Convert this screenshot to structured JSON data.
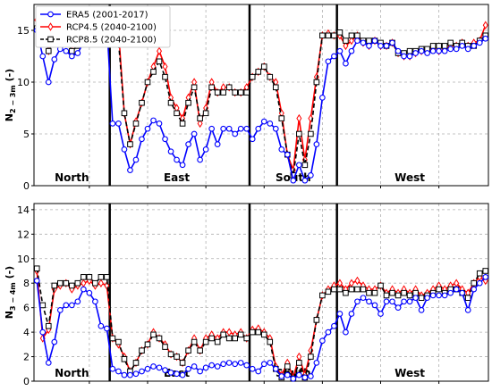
{
  "chart_data": [
    {
      "type": "line",
      "ylabel": "N2 − 3m (-)",
      "ylabel_main": "N",
      "ylabel_sub": "2 − 3m",
      "ylabel_unit": " (-)",
      "ylim": [
        0,
        17.5
      ],
      "yticks": [
        0,
        5,
        10,
        15
      ],
      "grid": true,
      "legend": "top-left",
      "x": [
        1,
        2,
        3,
        4,
        5,
        6,
        7,
        8,
        9,
        10,
        11,
        12,
        13,
        14,
        15,
        16,
        17,
        18,
        19,
        20,
        21,
        22,
        23,
        24,
        25,
        26,
        27,
        28,
        29,
        30,
        31,
        32,
        33,
        34,
        35,
        36,
        37,
        38,
        39,
        40,
        41,
        42,
        43,
        44,
        45,
        46,
        47,
        48,
        49,
        50,
        51,
        52,
        53,
        54,
        55,
        56,
        57,
        58,
        59,
        60,
        61,
        62,
        63,
        64,
        65,
        66,
        67,
        68,
        69,
        70,
        71,
        72,
        73,
        74,
        75,
        76,
        77,
        78
      ],
      "dividers": [
        13.5,
        37.5,
        52.5
      ],
      "regions": [
        {
          "label": "North",
          "x": 7
        },
        {
          "label": "East",
          "x": 25
        },
        {
          "label": "South",
          "x": 45
        },
        {
          "label": "West",
          "x": 65
        }
      ],
      "series": [
        {
          "name": "ERA5 (2001-2017)",
          "color": "#0000ff",
          "marker": "circle",
          "values": [
            15,
            12.5,
            10,
            12.2,
            13.2,
            13,
            12.5,
            12.8,
            13.8,
            13.6,
            13.8,
            14.5,
            15.5,
            6,
            6,
            3.5,
            1.5,
            2.5,
            4.5,
            5.5,
            6.3,
            6,
            4.5,
            3.3,
            2.5,
            2,
            4,
            5,
            2.5,
            3.5,
            5.5,
            4,
            5.5,
            5.5,
            5,
            5.5,
            5.5,
            4.5,
            5.5,
            6.2,
            6,
            5.5,
            3.5,
            3,
            0.5,
            2,
            0.5,
            1,
            4,
            8.5,
            12,
            12.5,
            13,
            11.8,
            13,
            14,
            13.8,
            13.5,
            14,
            13.5,
            13.5,
            13.8,
            13,
            12.5,
            12.5,
            12.8,
            13,
            12.8,
            13,
            13,
            13,
            13.2,
            13.2,
            13.5,
            13.2,
            13.5,
            13.8,
            14.2
          ]
        },
        {
          "name": "RCP4.5 (2040-2100)",
          "color": "#ff0000",
          "marker": "diamond",
          "values": [
            16,
            15.5,
            13,
            14.5,
            15.5,
            14.5,
            13.5,
            14,
            14.5,
            14.2,
            14,
            16.5,
            16.8,
            15.5,
            15,
            7,
            4,
            6.2,
            8,
            10,
            11.5,
            13,
            11.5,
            8.5,
            7.5,
            6.5,
            8.5,
            10,
            6,
            7.5,
            10,
            9,
            9.5,
            9.5,
            9,
            9,
            9.5,
            10.5,
            11,
            11.5,
            10.5,
            10,
            7,
            3,
            1.5,
            6.5,
            2.5,
            6.5,
            10.5,
            14.5,
            14.7,
            14.5,
            14.5,
            13.5,
            14,
            14.5,
            13.8,
            13.5,
            14,
            13.5,
            13.5,
            13.8,
            12.8,
            12.5,
            12.5,
            12.8,
            13,
            13,
            13.2,
            13,
            13.2,
            13.5,
            13.5,
            13.8,
            13.5,
            13.8,
            14,
            15.5
          ]
        },
        {
          "name": "RCP8.5 (2040-2100)",
          "color": "#000000",
          "marker": "square",
          "values": [
            15.2,
            16,
            13,
            14,
            14.5,
            14.5,
            13,
            13.5,
            14.5,
            14,
            14,
            16.2,
            16.2,
            14,
            14,
            7,
            4,
            6,
            8,
            10,
            11,
            12,
            10.5,
            8,
            7,
            6,
            8,
            9.5,
            6.5,
            7,
            9.5,
            9,
            9,
            9.5,
            9,
            9,
            9,
            10.5,
            11,
            11.5,
            10.5,
            9.5,
            6.5,
            3,
            1,
            5,
            2,
            5,
            10,
            14.5,
            14.5,
            14.5,
            14.8,
            14,
            14.5,
            14.5,
            14,
            14,
            14,
            13.8,
            13.5,
            13.8,
            12.8,
            12.8,
            13,
            13,
            13.2,
            13.2,
            13.5,
            13.5,
            13.5,
            13.8,
            13.5,
            13.8,
            13.5,
            13.5,
            14,
            14.5
          ]
        }
      ]
    },
    {
      "type": "line",
      "ylabel": "N3 − 4m (-)",
      "ylabel_main": "N",
      "ylabel_sub": "3 − 4m",
      "ylabel_unit": " (-)",
      "ylim": [
        0,
        14.5
      ],
      "yticks": [
        0,
        2,
        4,
        6,
        8,
        10,
        12,
        14
      ],
      "grid": true,
      "legend": "none",
      "x": [
        1,
        2,
        3,
        4,
        5,
        6,
        7,
        8,
        9,
        10,
        11,
        12,
        13,
        14,
        15,
        16,
        17,
        18,
        19,
        20,
        21,
        22,
        23,
        24,
        25,
        26,
        27,
        28,
        29,
        30,
        31,
        32,
        33,
        34,
        35,
        36,
        37,
        38,
        39,
        40,
        41,
        42,
        43,
        44,
        45,
        46,
        47,
        48,
        49,
        50,
        51,
        52,
        53,
        54,
        55,
        56,
        57,
        58,
        59,
        60,
        61,
        62,
        63,
        64,
        65,
        66,
        67,
        68,
        69,
        70,
        71,
        72,
        73,
        74,
        75,
        76,
        77,
        78
      ],
      "dividers": [
        13.5,
        37.5,
        52.5
      ],
      "regions": [
        {
          "label": "North",
          "x": 7
        },
        {
          "label": "East",
          "x": 25
        },
        {
          "label": "South",
          "x": 45
        },
        {
          "label": "West",
          "x": 65
        }
      ],
      "series": [
        {
          "name": "ERA5 (2001-2017)",
          "color": "#0000ff",
          "marker": "circle",
          "values": [
            8.2,
            4,
            1.5,
            3.2,
            5.8,
            6.2,
            6.2,
            6.5,
            7.5,
            7.2,
            6.5,
            4.5,
            4.3,
            1,
            0.8,
            0.5,
            0.5,
            0.6,
            0.8,
            1,
            1.2,
            1.1,
            0.9,
            0.7,
            0.6,
            0.5,
            1,
            1.2,
            0.8,
            1.1,
            1.3,
            1.2,
            1.4,
            1.5,
            1.4,
            1.5,
            1.3,
            1,
            0.8,
            1.4,
            1.5,
            1,
            0.4,
            0.5,
            0.2,
            0.5,
            0.3,
            0.4,
            1.5,
            3.3,
            4,
            4.5,
            5.5,
            4,
            5.5,
            6.5,
            6.8,
            6.5,
            6.2,
            5.5,
            6.5,
            6.5,
            6,
            6.5,
            6.5,
            6.8,
            5.8,
            6.8,
            7,
            7,
            7,
            7.2,
            7.5,
            7.2,
            5.8,
            7.5,
            8,
            8.5
          ]
        },
        {
          "name": "RCP4.5 (2040-2100)",
          "color": "#ff0000",
          "marker": "diamond",
          "values": [
            9,
            3.5,
            4.2,
            7.5,
            7.8,
            8,
            7.5,
            7.8,
            8,
            8.2,
            7.8,
            8,
            7.8,
            3.5,
            3,
            2,
            0.8,
            1.5,
            2.5,
            3,
            4,
            3.5,
            3,
            2.2,
            2,
            1.5,
            2.5,
            3.5,
            2.5,
            3.5,
            3.8,
            3.5,
            4,
            4,
            3.8,
            4,
            3.5,
            4.2,
            4.3,
            4,
            3.5,
            1.2,
            0.5,
            1.5,
            0.3,
            2,
            0.5,
            2.5,
            5,
            7,
            7.5,
            7.8,
            8,
            7.5,
            8,
            8.2,
            7.8,
            7.5,
            7.5,
            7.8,
            7.2,
            7.5,
            7.2,
            7.5,
            7.2,
            7.5,
            7,
            7.2,
            7.5,
            7.8,
            7.5,
            7.8,
            8,
            7.5,
            7.2,
            8,
            8.5,
            8.2
          ]
        },
        {
          "name": "RCP8.5 (2040-2100)",
          "color": "#000000",
          "marker": "square",
          "values": [
            9.2,
            6.2,
            4.5,
            7.8,
            8,
            8,
            7.8,
            8,
            8.5,
            8.5,
            8,
            8.5,
            8.5,
            3.5,
            3.2,
            1.8,
            0.8,
            1.5,
            2.5,
            3,
            3.8,
            3.5,
            2.8,
            2.2,
            2,
            1.5,
            2.5,
            3.2,
            2.5,
            3.2,
            3.5,
            3.2,
            3.8,
            3.5,
            3.5,
            3.8,
            3.5,
            4,
            4,
            3.8,
            3.2,
            1,
            0.3,
            1.2,
            0.2,
            1.5,
            0.3,
            2,
            5,
            7,
            7.3,
            7.5,
            7.5,
            7.2,
            7.5,
            7.5,
            7.5,
            7.2,
            7.2,
            7.8,
            7,
            7.2,
            7,
            7.2,
            7,
            7.2,
            6.8,
            7,
            7.2,
            7.5,
            7.2,
            7.5,
            7.5,
            7.2,
            6.8,
            8,
            8.8,
            9
          ]
        }
      ]
    }
  ]
}
